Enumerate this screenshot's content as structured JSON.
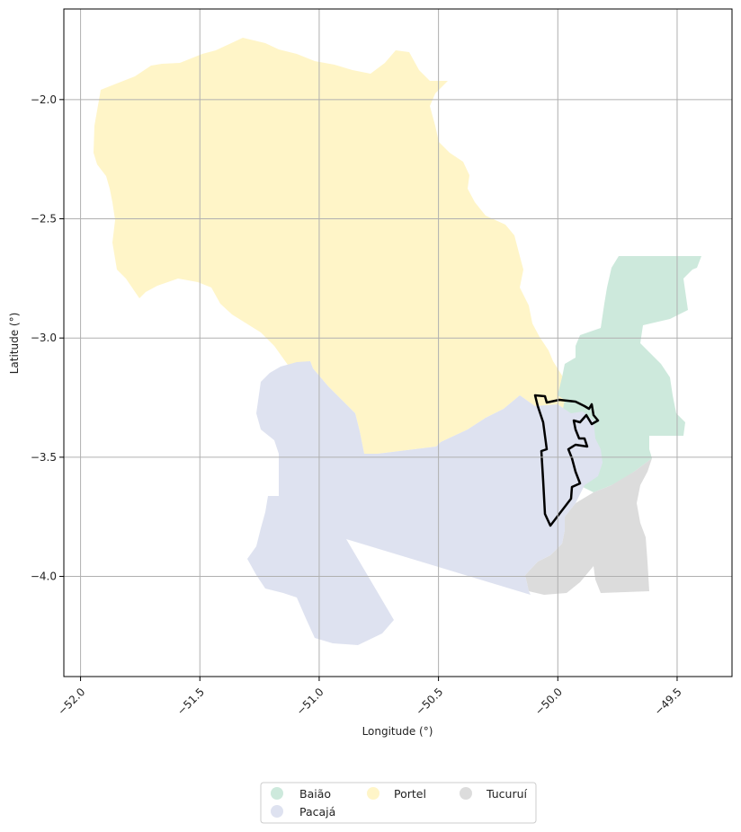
{
  "chart_data": {
    "type": "map",
    "xlabel": "Longitude (°)",
    "ylabel": "Latitude (°)",
    "xlim": [
      -52.07,
      -49.27
    ],
    "ylim": [
      -4.42,
      -1.62
    ],
    "x_ticks": [
      {
        "value": -52.0,
        "label": "−52.0"
      },
      {
        "value": -51.5,
        "label": "−51.5"
      },
      {
        "value": -51.0,
        "label": "−51.0"
      },
      {
        "value": -50.5,
        "label": "−50.5"
      },
      {
        "value": -50.0,
        "label": "−50.0"
      },
      {
        "value": -49.5,
        "label": "−49.5"
      }
    ],
    "y_ticks": [
      {
        "value": -2.0,
        "label": "−2.0"
      },
      {
        "value": -2.5,
        "label": "−2.5"
      },
      {
        "value": -3.0,
        "label": "−3.0"
      },
      {
        "value": -3.5,
        "label": "−3.5"
      },
      {
        "value": -4.0,
        "label": "−4.0"
      }
    ],
    "grid": true,
    "legend_placement": "bottom-center",
    "regions": [
      {
        "name": "Baião",
        "color": "#cde9dc"
      },
      {
        "name": "Pacajá",
        "color": "#dee2f0"
      },
      {
        "name": "Portel",
        "color": "#fff5c8"
      },
      {
        "name": "Tucuruí",
        "color": "#dcdcdc"
      }
    ],
    "outline": {
      "color": "#000000"
    }
  }
}
